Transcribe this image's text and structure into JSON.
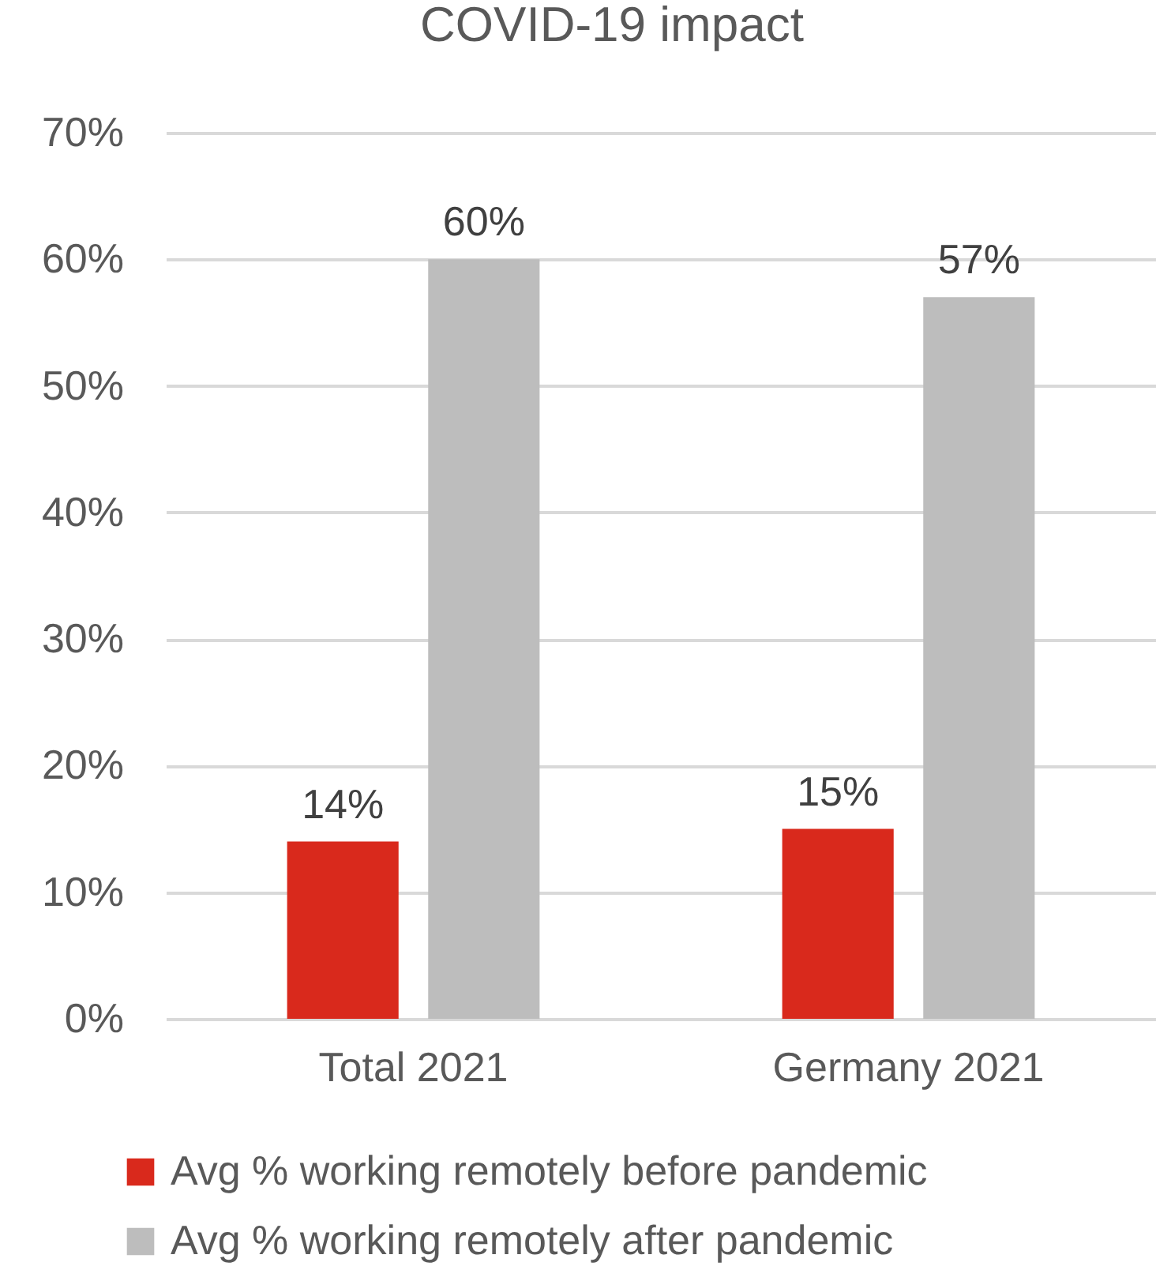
{
  "chart_data": {
    "type": "bar",
    "title": "COVID-19 impact",
    "categories": [
      "Total 2021",
      "Germany 2021"
    ],
    "series": [
      {
        "name": "Avg % working remotely before pandemic",
        "color": "#d9291c",
        "values": [
          14,
          15
        ],
        "value_labels": [
          "14%",
          "15%"
        ]
      },
      {
        "name": "Avg % working remotely after pandemic",
        "color": "#bdbdbd",
        "values": [
          60,
          57
        ],
        "value_labels": [
          "60%",
          "57%"
        ]
      }
    ],
    "ylim": [
      0,
      70
    ],
    "yticks": [
      {
        "value": 0,
        "label": "0%"
      },
      {
        "value": 10,
        "label": "10%"
      },
      {
        "value": 20,
        "label": "20%"
      },
      {
        "value": 30,
        "label": "30%"
      },
      {
        "value": 40,
        "label": "40%"
      },
      {
        "value": 50,
        "label": "50%"
      },
      {
        "value": 60,
        "label": "60%"
      },
      {
        "value": 70,
        "label": "70%"
      }
    ],
    "grid": "y",
    "legend": "bottom"
  }
}
